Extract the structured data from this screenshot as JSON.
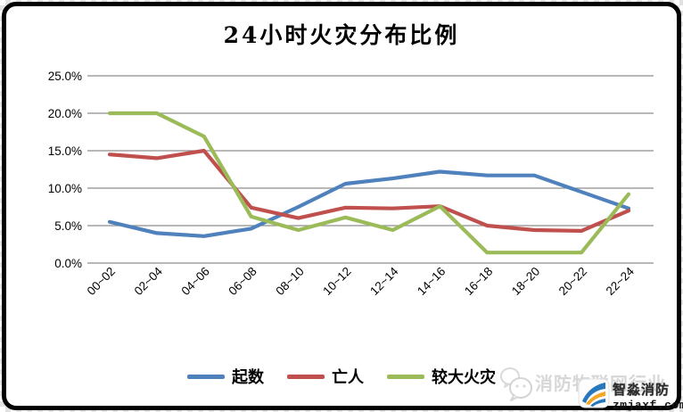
{
  "title": "24小时火灾分布比例",
  "chart_data": {
    "type": "line",
    "categories": [
      "00~02",
      "02~04",
      "04~06",
      "06~08",
      "08~10",
      "10~12",
      "12~14",
      "14~16",
      "16~18",
      "18~20",
      "20~22",
      "22~24"
    ],
    "series": [
      {
        "name": "起数",
        "color": "#4F81BD",
        "values": [
          5.5,
          4.0,
          3.6,
          4.6,
          7.5,
          10.6,
          11.3,
          12.2,
          11.7,
          11.7,
          9.5,
          7.3
        ]
      },
      {
        "name": "亡人",
        "color": "#C0504D",
        "values": [
          14.5,
          14.0,
          15.0,
          7.4,
          6.0,
          7.4,
          7.3,
          7.6,
          5.0,
          4.4,
          4.3,
          7.0
        ]
      },
      {
        "name": "较大火灾",
        "color": "#9BBB59",
        "values": [
          20.0,
          20.0,
          16.9,
          6.2,
          4.4,
          6.1,
          4.4,
          7.6,
          1.4,
          1.4,
          1.4,
          9.2
        ]
      }
    ],
    "title": "24小时火灾分布比例",
    "xlabel": "",
    "ylabel": "",
    "ylim": [
      0,
      25
    ],
    "y_ticks": [
      "0.0%",
      "5.0%",
      "10.0%",
      "15.0%",
      "20.0%",
      "25.0%"
    ],
    "grid": "horizontal",
    "gridline_color": "#8e8e8e",
    "legend_position": "bottom"
  },
  "watermark": {
    "wechat_icon": "wechat-icon",
    "text": "消防物联网行业",
    "brand": "智淼消防",
    "domain": "zmjaxf.com"
  }
}
